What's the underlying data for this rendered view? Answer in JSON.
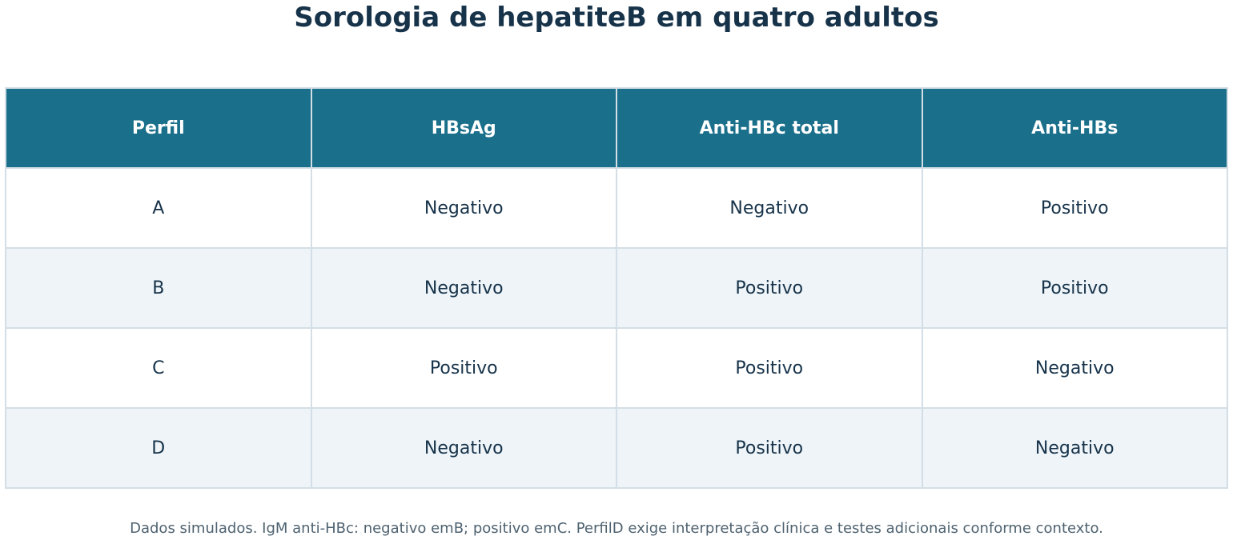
{
  "chart_data": {
    "type": "table",
    "title": "Sorologia de hepatiteB em quatro adultos",
    "columns": [
      "Perfil",
      "HBsAg",
      "Anti-HBc total",
      "Anti-HBs"
    ],
    "rows": [
      [
        "A",
        "Negativo",
        "Negativo",
        "Positivo"
      ],
      [
        "B",
        "Negativo",
        "Positivo",
        "Positivo"
      ],
      [
        "C",
        "Positivo",
        "Positivo",
        "Negativo"
      ],
      [
        "D",
        "Negativo",
        "Positivo",
        "Negativo"
      ]
    ],
    "footnote": "Dados simulados. IgM anti-HBc: negativo emB; positivo emC. PerfilD exige interpretação clínica e testes adicionais conforme contexto."
  },
  "colors": {
    "header_bg": "#1a6f8b",
    "header_text": "#ffffff",
    "row_alt_bg": "#eef4f8",
    "border": "#d3dee6",
    "text": "#17334a",
    "note_text": "#4e6270"
  }
}
